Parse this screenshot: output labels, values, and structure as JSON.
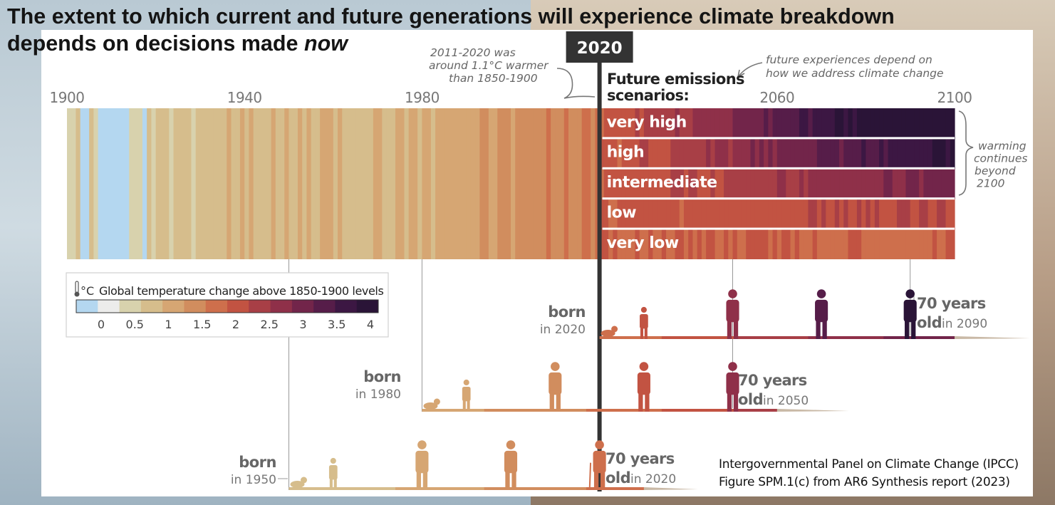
{
  "headline": {
    "line1": "The extent to which current and future generations will experience climate breakdown",
    "line2_prefix": "depends on decisions made ",
    "line2_emph": "now"
  },
  "chart_data": {
    "type": "heatmap",
    "year_range": [
      1900,
      2100
    ],
    "tick_labels": [
      "1900",
      "1940",
      "1980",
      "2060",
      "2100"
    ],
    "current_year_label": "2020",
    "scenarios_title": [
      "Future emissions",
      "scenarios:"
    ],
    "scenarios": [
      {
        "name": "very high",
        "warming_2021": 1.5,
        "warming_2100": 4.3
      },
      {
        "name": "high",
        "warming_2021": 1.5,
        "warming_2100": 3.6
      },
      {
        "name": "intermediate",
        "warming_2021": 1.5,
        "warming_2100": 2.7
      },
      {
        "name": "low",
        "warming_2021": 1.5,
        "warming_2100": 1.8
      },
      {
        "name": "very low",
        "warming_2021": 1.5,
        "warming_2100": 1.4
      }
    ],
    "observed_warming_keypoints": [
      {
        "year": 1900,
        "value": 0.2
      },
      {
        "year": 1910,
        "value": 0.05
      },
      {
        "year": 1925,
        "value": 0.25
      },
      {
        "year": 1940,
        "value": 0.4
      },
      {
        "year": 1960,
        "value": 0.4
      },
      {
        "year": 1975,
        "value": 0.5
      },
      {
        "year": 1985,
        "value": 0.7
      },
      {
        "year": 2000,
        "value": 0.9
      },
      {
        "year": 2010,
        "value": 1.05
      },
      {
        "year": 2020,
        "value": 1.2
      }
    ],
    "legend": {
      "icon_label": "°C",
      "title": "Global temperature change above 1850-1900 levels",
      "ticks": [
        "0",
        "0.5",
        "1",
        "1.5",
        "2",
        "2.5",
        "3",
        "3.5",
        "4"
      ],
      "colors": [
        "#b4d7f0",
        "#ececeb",
        "#d8d2ad",
        "#d6bd8c",
        "#d6a673",
        "#d18d5e",
        "#ce6f4c",
        "#c25342",
        "#a83f46",
        "#8f3049",
        "#72254a",
        "#561d49",
        "#3c1743",
        "#2a1437"
      ]
    },
    "annotations": {
      "past": [
        "2011-2020 was",
        "around 1.1°C warmer",
        "than 1850-1900"
      ],
      "future": [
        "future experiences depend on",
        "how we address climate change"
      ],
      "beyond": [
        "warming",
        "continues",
        "beyond",
        "2100"
      ]
    },
    "generations": [
      {
        "birth_year": 1950,
        "born_label": "born",
        "in_label": "in 1950",
        "age_label": "70 years",
        "old_label": "old",
        "old_in": "in 2020",
        "turns_70_year": 2020
      },
      {
        "birth_year": 1980,
        "born_label": "born",
        "in_label": "in 1980",
        "age_label": "70 years",
        "old_label": "old",
        "old_in": "in 2050",
        "turns_70_year": 2050
      },
      {
        "birth_year": 2020,
        "born_label": "born",
        "in_label": "in 2020",
        "age_label": "70 years",
        "old_label": "old",
        "old_in": "in 2090",
        "turns_70_year": 2090
      }
    ],
    "source": [
      "Intergovernmental Panel on Climate Change (IPCC)",
      "Figure SPM.1(c) from AR6 Synthesis report (2023)"
    ]
  }
}
